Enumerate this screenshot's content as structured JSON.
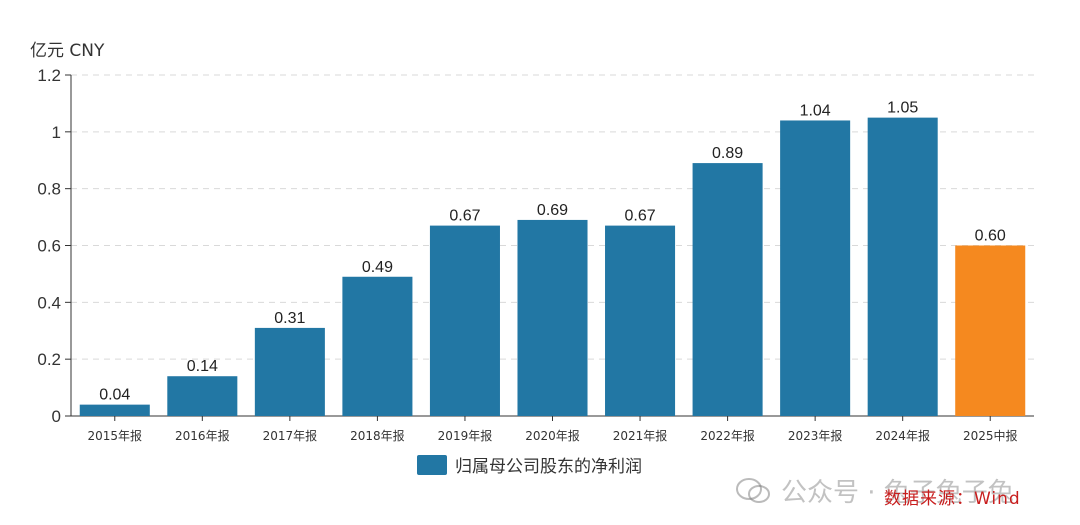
{
  "chart_data": {
    "type": "bar",
    "unit_label": "亿元  CNY",
    "categories": [
      "2015年报",
      "2016年报",
      "2017年报",
      "2018年报",
      "2019年报",
      "2020年报",
      "2021年报",
      "2022年报",
      "2023年报",
      "2024年报",
      "2025中报"
    ],
    "series": [
      {
        "name": "归属母公司股东的净利润",
        "values": [
          0.04,
          0.14,
          0.31,
          0.49,
          0.67,
          0.69,
          0.67,
          0.89,
          1.04,
          1.05,
          0.6
        ]
      }
    ],
    "value_labels": [
      "0.04",
      "0.14",
      "0.31",
      "0.49",
      "0.67",
      "0.69",
      "0.67",
      "0.89",
      "1.04",
      "1.05",
      "0.60"
    ],
    "highlight_index": 10,
    "ylim": [
      0,
      1.2
    ],
    "yticks": [
      "0",
      "0.2",
      "0.4",
      "0.6",
      "0.8",
      "1",
      "1.2"
    ],
    "grid": true,
    "legend": "bottom-center",
    "colors": {
      "bar": "#2277a4",
      "highlight": "#f5891f",
      "grid": "#d9d9d9",
      "axis": "#333333"
    }
  },
  "watermark_text": "公众号 · 兔子兔子兔",
  "source_text": "数据来源：Wind"
}
